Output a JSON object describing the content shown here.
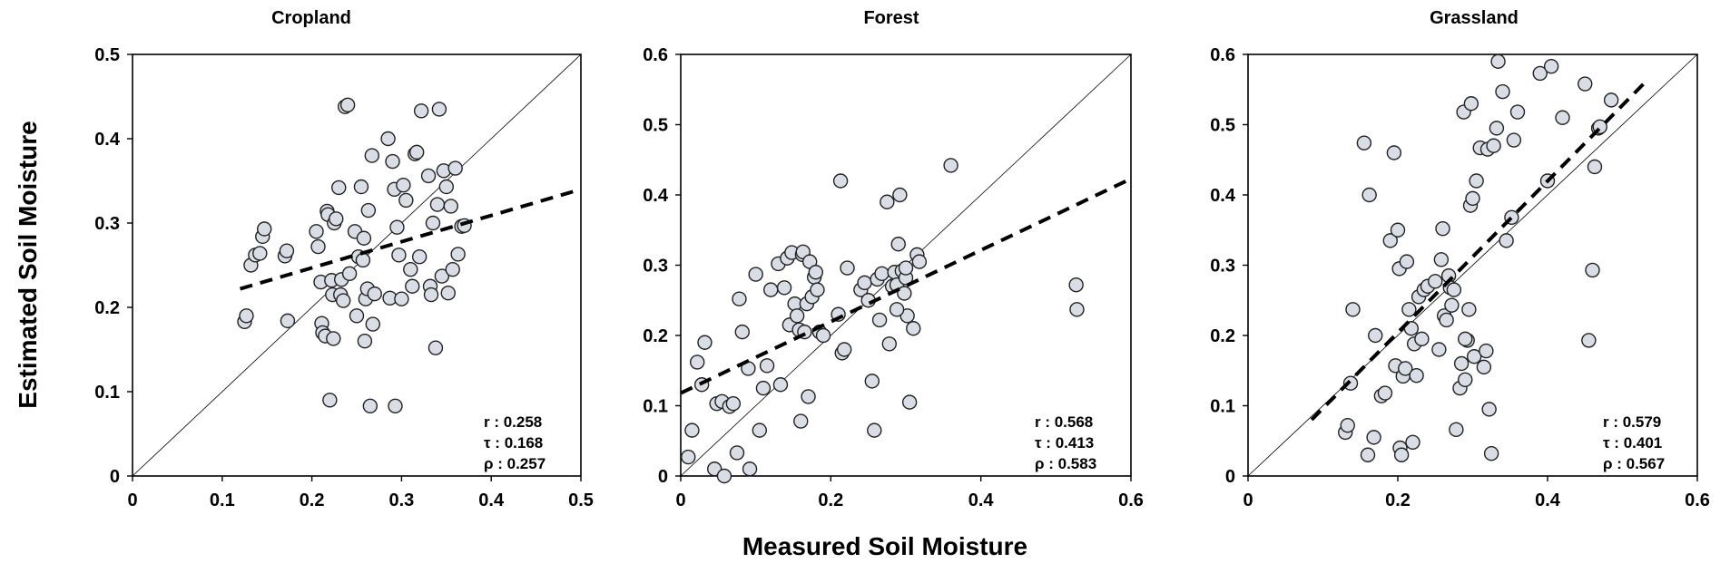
{
  "figure": {
    "xlabel": "Measured Soil Moisture",
    "ylabel": "Estimated Soil Moisture",
    "point_fill": "#d9dde5",
    "point_stroke": "#222222"
  },
  "chart_data": [
    {
      "type": "scatter",
      "title": "Cropland",
      "xlim": [
        0,
        0.5
      ],
      "ylim": [
        0,
        0.5
      ],
      "xticks": [
        "0",
        "0.1",
        "0.2",
        "0.3",
        "0.4",
        "0.5"
      ],
      "yticks": [
        "0",
        "0.1",
        "0.2",
        "0.3",
        "0.4",
        "0.5"
      ],
      "xtick_values": [
        0,
        0.1,
        0.2,
        0.3,
        0.4,
        0.5
      ],
      "ytick_values": [
        0,
        0.1,
        0.2,
        0.3,
        0.4,
        0.5
      ],
      "trend_line": [
        [
          0.12,
          0.222
        ],
        [
          0.5,
          0.34
        ]
      ],
      "stats": [
        "r : 0.258",
        "τ : 0.168",
        "ρ : 0.257"
      ],
      "points": [
        [
          0.125,
          0.183
        ],
        [
          0.127,
          0.19
        ],
        [
          0.132,
          0.25
        ],
        [
          0.137,
          0.262
        ],
        [
          0.142,
          0.264
        ],
        [
          0.145,
          0.284
        ],
        [
          0.147,
          0.293
        ],
        [
          0.17,
          0.261
        ],
        [
          0.172,
          0.267
        ],
        [
          0.173,
          0.184
        ],
        [
          0.205,
          0.29
        ],
        [
          0.207,
          0.272
        ],
        [
          0.21,
          0.23
        ],
        [
          0.211,
          0.181
        ],
        [
          0.212,
          0.17
        ],
        [
          0.215,
          0.166
        ],
        [
          0.217,
          0.314
        ],
        [
          0.218,
          0.31
        ],
        [
          0.22,
          0.09
        ],
        [
          0.222,
          0.232
        ],
        [
          0.223,
          0.215
        ],
        [
          0.224,
          0.163
        ],
        [
          0.225,
          0.3
        ],
        [
          0.227,
          0.305
        ],
        [
          0.23,
          0.342
        ],
        [
          0.232,
          0.215
        ],
        [
          0.233,
          0.233
        ],
        [
          0.235,
          0.208
        ],
        [
          0.237,
          0.438
        ],
        [
          0.24,
          0.44
        ],
        [
          0.242,
          0.24
        ],
        [
          0.248,
          0.29
        ],
        [
          0.25,
          0.19
        ],
        [
          0.252,
          0.26
        ],
        [
          0.255,
          0.343
        ],
        [
          0.257,
          0.256
        ],
        [
          0.258,
          0.282
        ],
        [
          0.259,
          0.16
        ],
        [
          0.26,
          0.21
        ],
        [
          0.262,
          0.222
        ],
        [
          0.263,
          0.315
        ],
        [
          0.265,
          0.083
        ],
        [
          0.267,
          0.38
        ],
        [
          0.268,
          0.18
        ],
        [
          0.27,
          0.216
        ],
        [
          0.285,
          0.4
        ],
        [
          0.287,
          0.211
        ],
        [
          0.29,
          0.373
        ],
        [
          0.292,
          0.34
        ],
        [
          0.293,
          0.083
        ],
        [
          0.295,
          0.295
        ],
        [
          0.297,
          0.262
        ],
        [
          0.3,
          0.21
        ],
        [
          0.302,
          0.345
        ],
        [
          0.305,
          0.327
        ],
        [
          0.31,
          0.245
        ],
        [
          0.312,
          0.225
        ],
        [
          0.315,
          0.382
        ],
        [
          0.317,
          0.384
        ],
        [
          0.32,
          0.26
        ],
        [
          0.322,
          0.433
        ],
        [
          0.33,
          0.356
        ],
        [
          0.332,
          0.225
        ],
        [
          0.333,
          0.215
        ],
        [
          0.335,
          0.3
        ],
        [
          0.338,
          0.152
        ],
        [
          0.34,
          0.322
        ],
        [
          0.342,
          0.435
        ],
        [
          0.345,
          0.237
        ],
        [
          0.347,
          0.362
        ],
        [
          0.35,
          0.343
        ],
        [
          0.352,
          0.217
        ],
        [
          0.355,
          0.32
        ],
        [
          0.357,
          0.245
        ],
        [
          0.36,
          0.365
        ],
        [
          0.363,
          0.263
        ],
        [
          0.367,
          0.296
        ],
        [
          0.37,
          0.297
        ]
      ]
    },
    {
      "type": "scatter",
      "title": "Forest",
      "xlim": [
        0,
        0.6
      ],
      "ylim": [
        0,
        0.6
      ],
      "xticks": [
        "0",
        "0.2",
        "0.4",
        "0.6"
      ],
      "yticks": [
        "0",
        "0.1",
        "0.2",
        "0.3",
        "0.4",
        "0.5",
        "0.6"
      ],
      "xtick_values": [
        0,
        0.2,
        0.4,
        0.6
      ],
      "ytick_values": [
        0,
        0.1,
        0.2,
        0.3,
        0.4,
        0.5,
        0.6
      ],
      "trend_line": [
        [
          0,
          0.118
        ],
        [
          0.6,
          0.423
        ]
      ],
      "stats": [
        "r : 0.568",
        "τ : 0.413",
        "ρ : 0.583"
      ],
      "points": [
        [
          0.01,
          0.027
        ],
        [
          0.015,
          0.065
        ],
        [
          0.022,
          0.162
        ],
        [
          0.028,
          0.13
        ],
        [
          0.032,
          0.19
        ],
        [
          0.045,
          0.01
        ],
        [
          0.048,
          0.103
        ],
        [
          0.055,
          0.106
        ],
        [
          0.058,
          0.0
        ],
        [
          0.065,
          0.099
        ],
        [
          0.07,
          0.103
        ],
        [
          0.075,
          0.033
        ],
        [
          0.078,
          0.252
        ],
        [
          0.082,
          0.205
        ],
        [
          0.09,
          0.153
        ],
        [
          0.092,
          0.01
        ],
        [
          0.1,
          0.287
        ],
        [
          0.105,
          0.065
        ],
        [
          0.11,
          0.125
        ],
        [
          0.115,
          0.157
        ],
        [
          0.12,
          0.265
        ],
        [
          0.13,
          0.302
        ],
        [
          0.133,
          0.13
        ],
        [
          0.138,
          0.268
        ],
        [
          0.142,
          0.31
        ],
        [
          0.145,
          0.215
        ],
        [
          0.148,
          0.318
        ],
        [
          0.152,
          0.245
        ],
        [
          0.155,
          0.228
        ],
        [
          0.158,
          0.208
        ],
        [
          0.16,
          0.078
        ],
        [
          0.162,
          0.315
        ],
        [
          0.163,
          0.319
        ],
        [
          0.165,
          0.205
        ],
        [
          0.168,
          0.245
        ],
        [
          0.17,
          0.113
        ],
        [
          0.172,
          0.305
        ],
        [
          0.175,
          0.255
        ],
        [
          0.178,
          0.283
        ],
        [
          0.18,
          0.29
        ],
        [
          0.182,
          0.265
        ],
        [
          0.185,
          0.205
        ],
        [
          0.19,
          0.2
        ],
        [
          0.21,
          0.23
        ],
        [
          0.213,
          0.42
        ],
        [
          0.215,
          0.175
        ],
        [
          0.218,
          0.18
        ],
        [
          0.222,
          0.296
        ],
        [
          0.24,
          0.265
        ],
        [
          0.245,
          0.275
        ],
        [
          0.25,
          0.25
        ],
        [
          0.255,
          0.135
        ],
        [
          0.258,
          0.065
        ],
        [
          0.262,
          0.28
        ],
        [
          0.265,
          0.222
        ],
        [
          0.268,
          0.288
        ],
        [
          0.275,
          0.39
        ],
        [
          0.278,
          0.188
        ],
        [
          0.282,
          0.27
        ],
        [
          0.285,
          0.29
        ],
        [
          0.288,
          0.272
        ],
        [
          0.29,
          0.33
        ],
        [
          0.292,
          0.4
        ],
        [
          0.295,
          0.292
        ],
        [
          0.298,
          0.26
        ],
        [
          0.3,
          0.282
        ],
        [
          0.302,
          0.228
        ],
        [
          0.305,
          0.105
        ],
        [
          0.31,
          0.21
        ],
        [
          0.315,
          0.315
        ],
        [
          0.318,
          0.305
        ],
        [
          0.36,
          0.442
        ],
        [
          0.527,
          0.272
        ],
        [
          0.528,
          0.237
        ],
        [
          0.3,
          0.296
        ],
        [
          0.288,
          0.237
        ]
      ]
    },
    {
      "type": "scatter",
      "title": "Grassland",
      "xlim": [
        0,
        0.6
      ],
      "ylim": [
        0,
        0.6
      ],
      "xticks": [
        "0",
        "0.2",
        "0.4",
        "0.6"
      ],
      "yticks": [
        "0",
        "0.1",
        "0.2",
        "0.3",
        "0.4",
        "0.5",
        "0.6"
      ],
      "xtick_values": [
        0,
        0.2,
        0.4,
        0.6
      ],
      "ytick_values": [
        0,
        0.1,
        0.2,
        0.3,
        0.4,
        0.5,
        0.6
      ],
      "trend_line": [
        [
          0.085,
          0.08
        ],
        [
          0.53,
          0.56
        ]
      ],
      "stats": [
        "r : 0.579",
        "τ : 0.401",
        "ρ : 0.567"
      ],
      "points": [
        [
          0.13,
          0.062
        ],
        [
          0.133,
          0.072
        ],
        [
          0.137,
          0.132
        ],
        [
          0.14,
          0.237
        ],
        [
          0.155,
          0.474
        ],
        [
          0.16,
          0.03
        ],
        [
          0.162,
          0.4
        ],
        [
          0.168,
          0.055
        ],
        [
          0.17,
          0.2
        ],
        [
          0.178,
          0.114
        ],
        [
          0.183,
          0.118
        ],
        [
          0.19,
          0.335
        ],
        [
          0.195,
          0.46
        ],
        [
          0.197,
          0.157
        ],
        [
          0.2,
          0.35
        ],
        [
          0.202,
          0.295
        ],
        [
          0.203,
          0.04
        ],
        [
          0.205,
          0.03
        ],
        [
          0.207,
          0.142
        ],
        [
          0.21,
          0.153
        ],
        [
          0.212,
          0.305
        ],
        [
          0.215,
          0.237
        ],
        [
          0.218,
          0.21
        ],
        [
          0.22,
          0.048
        ],
        [
          0.222,
          0.188
        ],
        [
          0.225,
          0.143
        ],
        [
          0.228,
          0.255
        ],
        [
          0.232,
          0.195
        ],
        [
          0.235,
          0.265
        ],
        [
          0.24,
          0.27
        ],
        [
          0.25,
          0.277
        ],
        [
          0.255,
          0.18
        ],
        [
          0.258,
          0.308
        ],
        [
          0.26,
          0.352
        ],
        [
          0.262,
          0.228
        ],
        [
          0.265,
          0.222
        ],
        [
          0.268,
          0.285
        ],
        [
          0.27,
          0.268
        ],
        [
          0.272,
          0.243
        ],
        [
          0.275,
          0.265
        ],
        [
          0.278,
          0.066
        ],
        [
          0.283,
          0.125
        ],
        [
          0.285,
          0.16
        ],
        [
          0.288,
          0.518
        ],
        [
          0.29,
          0.137
        ],
        [
          0.293,
          0.193
        ],
        [
          0.295,
          0.237
        ],
        [
          0.297,
          0.385
        ],
        [
          0.298,
          0.53
        ],
        [
          0.3,
          0.395
        ],
        [
          0.302,
          0.17
        ],
        [
          0.305,
          0.42
        ],
        [
          0.31,
          0.467
        ],
        [
          0.315,
          0.155
        ],
        [
          0.318,
          0.178
        ],
        [
          0.32,
          0.465
        ],
        [
          0.322,
          0.095
        ],
        [
          0.325,
          0.032
        ],
        [
          0.328,
          0.47
        ],
        [
          0.332,
          0.495
        ],
        [
          0.334,
          0.59
        ],
        [
          0.34,
          0.547
        ],
        [
          0.345,
          0.335
        ],
        [
          0.352,
          0.368
        ],
        [
          0.355,
          0.478
        ],
        [
          0.36,
          0.518
        ],
        [
          0.39,
          0.573
        ],
        [
          0.4,
          0.42
        ],
        [
          0.405,
          0.583
        ],
        [
          0.42,
          0.51
        ],
        [
          0.45,
          0.558
        ],
        [
          0.455,
          0.193
        ],
        [
          0.46,
          0.293
        ],
        [
          0.463,
          0.44
        ],
        [
          0.468,
          0.495
        ],
        [
          0.47,
          0.497
        ],
        [
          0.485,
          0.535
        ],
        [
          0.29,
          0.195
        ]
      ]
    }
  ]
}
